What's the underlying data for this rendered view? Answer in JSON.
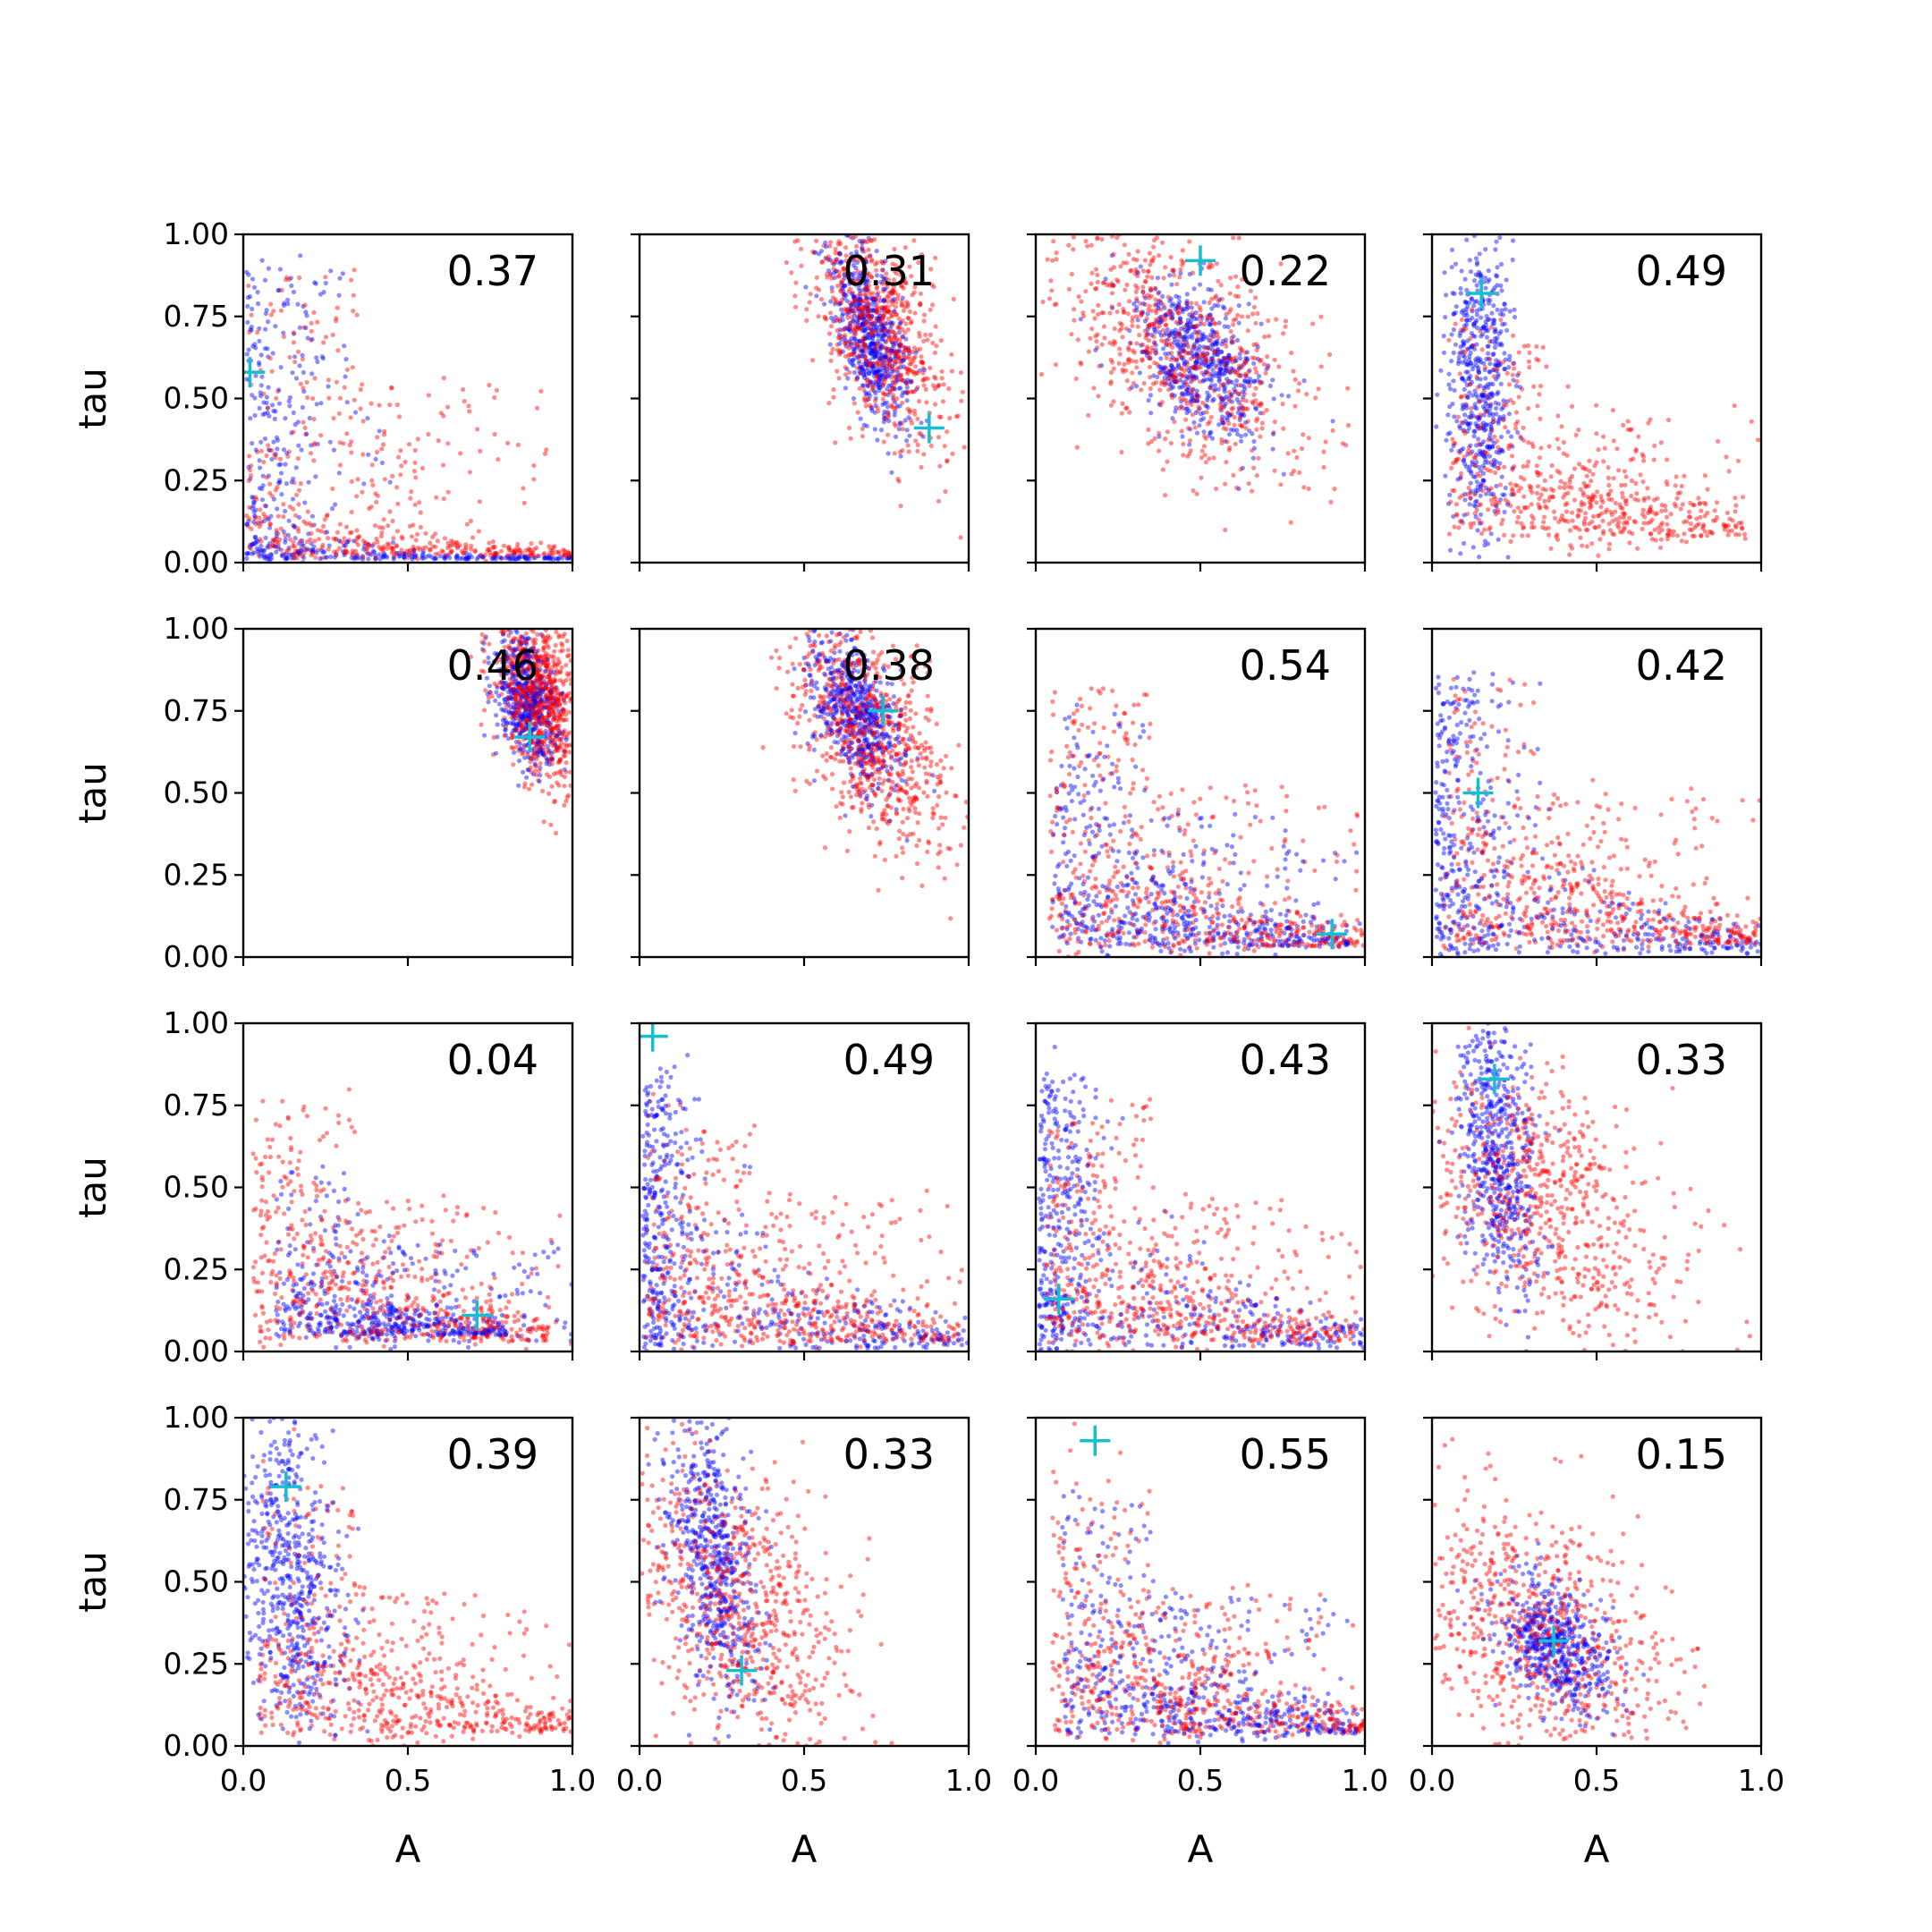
{
  "chart_data": {
    "type": "scatter",
    "grid": false,
    "layout": "4x4 small multiples",
    "xlabel": "A",
    "ylabel": "tau",
    "xlim": [
      0,
      1
    ],
    "ylim": [
      0,
      1
    ],
    "x_ticks": [
      "0.0",
      "0.5",
      "1.0"
    ],
    "y_ticks": [
      "0.00",
      "0.25",
      "0.50",
      "0.75",
      "1.00"
    ],
    "colors": {
      "series_a": "#ff0000",
      "series_b": "#0000ff",
      "marker": "#17becf"
    },
    "panels": [
      {
        "annotation": "0.37",
        "marker": [
          0.02,
          0.58
        ],
        "red": {
          "shape": "L",
          "ax": 0.01,
          "ay": 0.02,
          "k": 0.9,
          "sx": 0.45,
          "sy": 0.15,
          "n": 520
        },
        "blue": {
          "shape": "L",
          "ax": 0.01,
          "ay": 0.01,
          "k": 0.9,
          "sx": 0.15,
          "sy": 0.05,
          "n": 460
        }
      },
      {
        "annotation": "0.31",
        "marker": [
          0.88,
          0.41
        ],
        "red": {
          "shape": "blob",
          "cx": 0.72,
          "cy": 0.72,
          "sx": 0.1,
          "sy": 0.18,
          "r": -0.55,
          "n": 700
        },
        "blue": {
          "shape": "blob",
          "cx": 0.7,
          "cy": 0.7,
          "sx": 0.06,
          "sy": 0.14,
          "r": -0.6,
          "n": 560
        }
      },
      {
        "annotation": "0.22",
        "marker": [
          0.5,
          0.92
        ],
        "red": {
          "shape": "blob",
          "cx": 0.45,
          "cy": 0.63,
          "sx": 0.2,
          "sy": 0.2,
          "r": -0.5,
          "n": 700
        },
        "blue": {
          "shape": "blob",
          "cx": 0.5,
          "cy": 0.62,
          "sx": 0.1,
          "sy": 0.12,
          "r": -0.45,
          "n": 560
        }
      },
      {
        "annotation": "0.49",
        "marker": [
          0.15,
          0.82
        ],
        "red": {
          "shape": "L",
          "ax": 0.05,
          "ay": 0.08,
          "k": 0.75,
          "sx": 0.5,
          "sy": 0.45,
          "n": 620
        },
        "blue": {
          "shape": "blob",
          "cx": 0.15,
          "cy": 0.55,
          "sx": 0.05,
          "sy": 0.25,
          "r": 0,
          "n": 520
        }
      },
      {
        "annotation": "0.46",
        "marker": [
          0.87,
          0.67
        ],
        "red": {
          "shape": "blob",
          "cx": 0.9,
          "cy": 0.8,
          "sx": 0.07,
          "sy": 0.14,
          "r": -0.4,
          "n": 720
        },
        "blue": {
          "shape": "blob",
          "cx": 0.86,
          "cy": 0.78,
          "sx": 0.05,
          "sy": 0.1,
          "r": -0.4,
          "n": 520
        }
      },
      {
        "annotation": "0.38",
        "marker": [
          0.74,
          0.75
        ],
        "red": {
          "shape": "blob",
          "cx": 0.7,
          "cy": 0.68,
          "sx": 0.12,
          "sy": 0.17,
          "r": -0.5,
          "n": 700
        },
        "blue": {
          "shape": "blob",
          "cx": 0.66,
          "cy": 0.74,
          "sx": 0.07,
          "sy": 0.11,
          "r": -0.5,
          "n": 540
        }
      },
      {
        "annotation": "0.54",
        "marker": [
          0.9,
          0.07
        ],
        "red": {
          "shape": "L",
          "ax": 0.04,
          "ay": 0.03,
          "k": 0.85,
          "sx": 0.45,
          "sy": 0.4,
          "n": 600
        },
        "blue": {
          "shape": "L",
          "ax": 0.05,
          "ay": 0.03,
          "k": 0.75,
          "sx": 0.45,
          "sy": 0.35,
          "n": 560
        }
      },
      {
        "annotation": "0.42",
        "marker": [
          0.14,
          0.5
        ],
        "red": {
          "shape": "L",
          "ax": 0.03,
          "ay": 0.04,
          "k": 0.85,
          "sx": 0.5,
          "sy": 0.4,
          "n": 620
        },
        "blue": {
          "shape": "L",
          "ax": 0.01,
          "ay": 0.01,
          "k": 0.85,
          "sx": 0.12,
          "sy": 0.4,
          "n": 540
        }
      },
      {
        "annotation": "0.04",
        "marker": [
          0.71,
          0.11
        ],
        "red": {
          "shape": "L",
          "ax": 0.03,
          "ay": 0.03,
          "k": 0.75,
          "sx": 0.45,
          "sy": 0.45,
          "n": 620
        },
        "blue": {
          "shape": "L",
          "ax": 0.1,
          "ay": 0.05,
          "k": 0.55,
          "sx": 0.5,
          "sy": 0.15,
          "n": 560
        }
      },
      {
        "annotation": "0.49",
        "marker": [
          0.04,
          0.96
        ],
        "red": {
          "shape": "L",
          "ax": 0.02,
          "ay": 0.03,
          "k": 0.8,
          "sx": 0.5,
          "sy": 0.35,
          "n": 620
        },
        "blue": {
          "shape": "L",
          "ax": 0.01,
          "ay": 0.01,
          "k": 0.85,
          "sx": 0.08,
          "sy": 0.45,
          "n": 560
        }
      },
      {
        "annotation": "0.43",
        "marker": [
          0.07,
          0.16
        ],
        "red": {
          "shape": "L",
          "ax": 0.03,
          "ay": 0.03,
          "k": 0.8,
          "sx": 0.45,
          "sy": 0.35,
          "n": 620
        },
        "blue": {
          "shape": "L",
          "ax": 0.01,
          "ay": 0.01,
          "k": 0.85,
          "sx": 0.08,
          "sy": 0.45,
          "n": 560
        }
      },
      {
        "annotation": "0.33",
        "marker": [
          0.19,
          0.83
        ],
        "red": {
          "shape": "blob",
          "cx": 0.35,
          "cy": 0.45,
          "sx": 0.2,
          "sy": 0.22,
          "r": -0.45,
          "n": 640
        },
        "blue": {
          "shape": "blob",
          "cx": 0.2,
          "cy": 0.62,
          "sx": 0.06,
          "sy": 0.22,
          "r": -0.3,
          "n": 540
        }
      },
      {
        "annotation": "0.39",
        "marker": [
          0.13,
          0.79
        ],
        "red": {
          "shape": "L",
          "ax": 0.05,
          "ay": 0.04,
          "k": 0.8,
          "sx": 0.5,
          "sy": 0.4,
          "n": 620
        },
        "blue": {
          "shape": "blob",
          "cx": 0.15,
          "cy": 0.5,
          "sx": 0.08,
          "sy": 0.28,
          "r": -0.2,
          "n": 540
        }
      },
      {
        "annotation": "0.33",
        "marker": [
          0.31,
          0.23
        ],
        "red": {
          "shape": "blob",
          "cx": 0.3,
          "cy": 0.45,
          "sx": 0.18,
          "sy": 0.25,
          "r": -0.55,
          "n": 660
        },
        "blue": {
          "shape": "blob",
          "cx": 0.22,
          "cy": 0.58,
          "sx": 0.07,
          "sy": 0.22,
          "r": -0.35,
          "n": 540
        }
      },
      {
        "annotation": "0.55",
        "marker": [
          0.18,
          0.93
        ],
        "red": {
          "shape": "L",
          "ax": 0.05,
          "ay": 0.04,
          "k": 0.8,
          "sx": 0.45,
          "sy": 0.45,
          "n": 620
        },
        "blue": {
          "shape": "L",
          "ax": 0.08,
          "ay": 0.03,
          "k": 0.75,
          "sx": 0.45,
          "sy": 0.45,
          "n": 560
        }
      },
      {
        "annotation": "0.15",
        "marker": [
          0.37,
          0.32
        ],
        "red": {
          "shape": "blob",
          "cx": 0.32,
          "cy": 0.35,
          "sx": 0.22,
          "sy": 0.22,
          "r": -0.5,
          "n": 640
        },
        "blue": {
          "shape": "blob",
          "cx": 0.38,
          "cy": 0.3,
          "sx": 0.09,
          "sy": 0.1,
          "r": -0.4,
          "n": 540
        }
      }
    ]
  }
}
